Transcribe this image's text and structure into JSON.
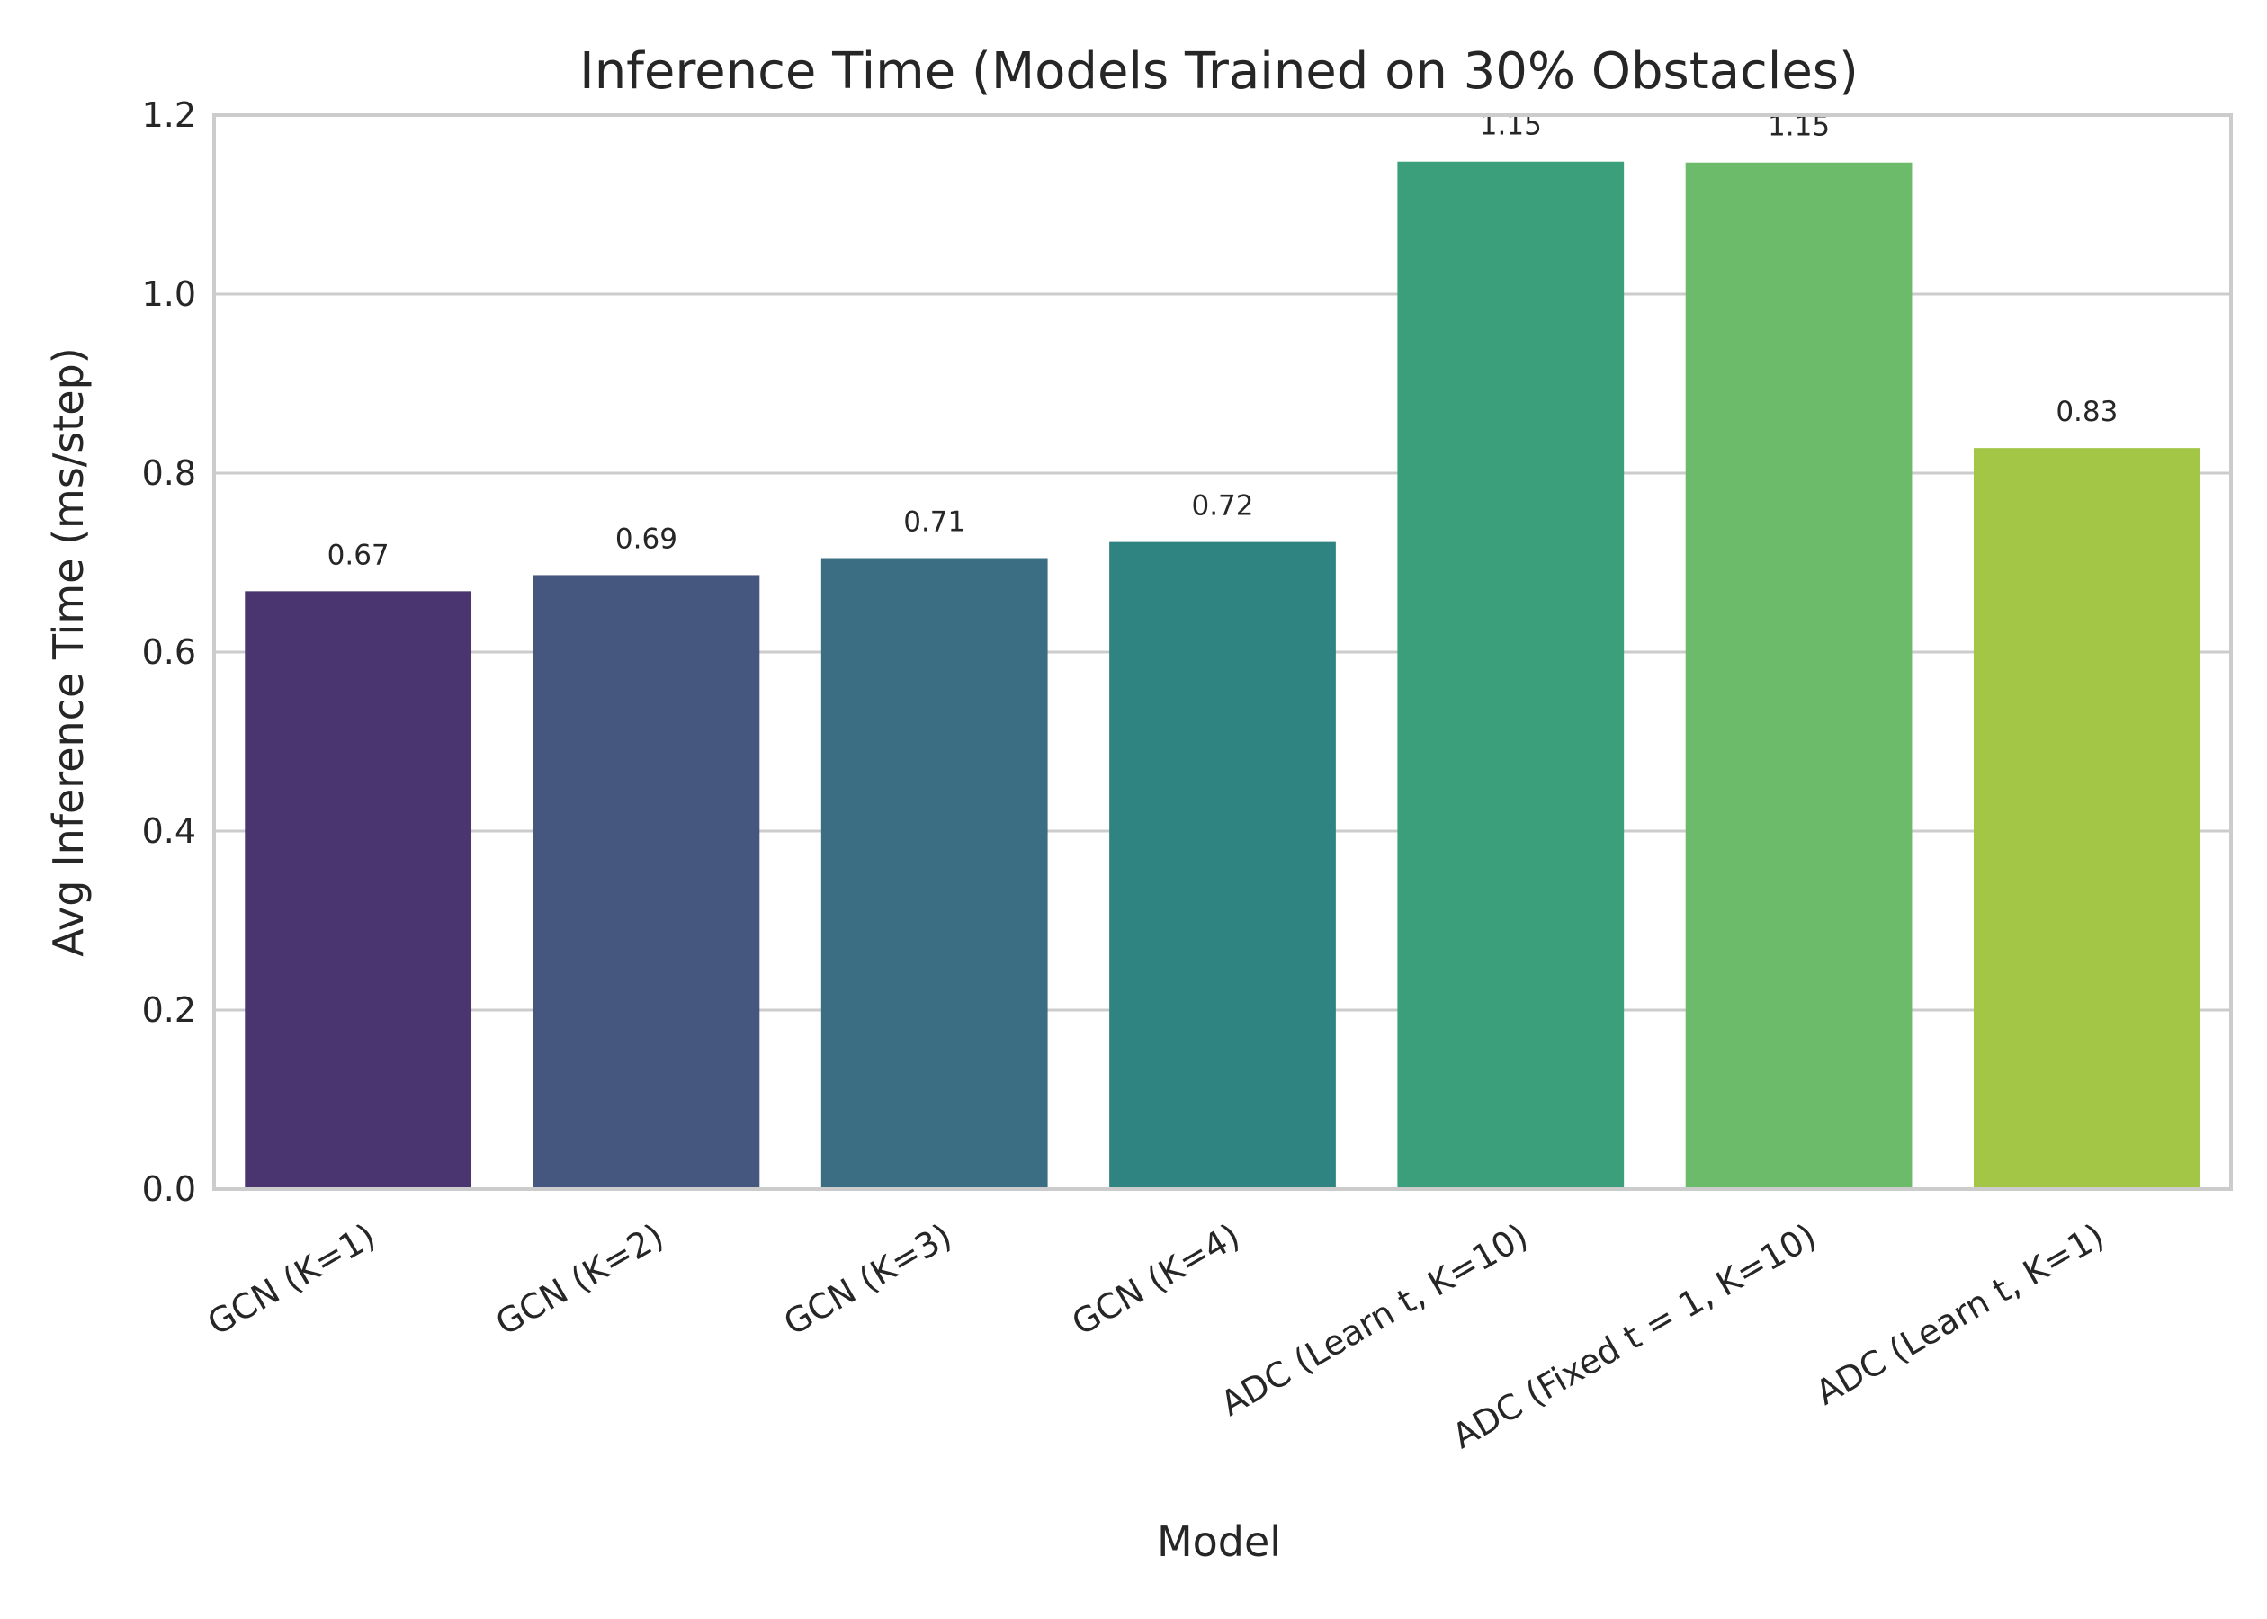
{
  "chart_data": {
    "type": "bar",
    "title": "Inference Time (Models Trained on 30% Obstacles)",
    "xlabel": "Model",
    "ylabel": "Avg Inference Time (ms/step)",
    "ylim": [
      0,
      1.2
    ],
    "yticks": [
      "0.0",
      "0.2",
      "0.4",
      "0.6",
      "0.8",
      "1.0",
      "1.2"
    ],
    "grid": true,
    "categories": [
      "GCN (K=1)",
      "GCN (K=2)",
      "GCN (K=3)",
      "GCN (K=4)",
      "ADC (Learn t, K=10)",
      "ADC (Fixed t = 1, K=10)",
      "ADC (Learn t, K=1)"
    ],
    "values": [
      0.668,
      0.686,
      0.705,
      0.723,
      1.148,
      1.147,
      0.828
    ],
    "value_labels": [
      "0.67",
      "0.69",
      "0.71",
      "0.72",
      "1.15",
      "1.15",
      "0.83"
    ],
    "colors": [
      "#4a3570",
      "#46577f",
      "#3b6e82",
      "#2f8380",
      "#3c9f7c",
      "#6bbb6b",
      "#a3c647"
    ]
  }
}
